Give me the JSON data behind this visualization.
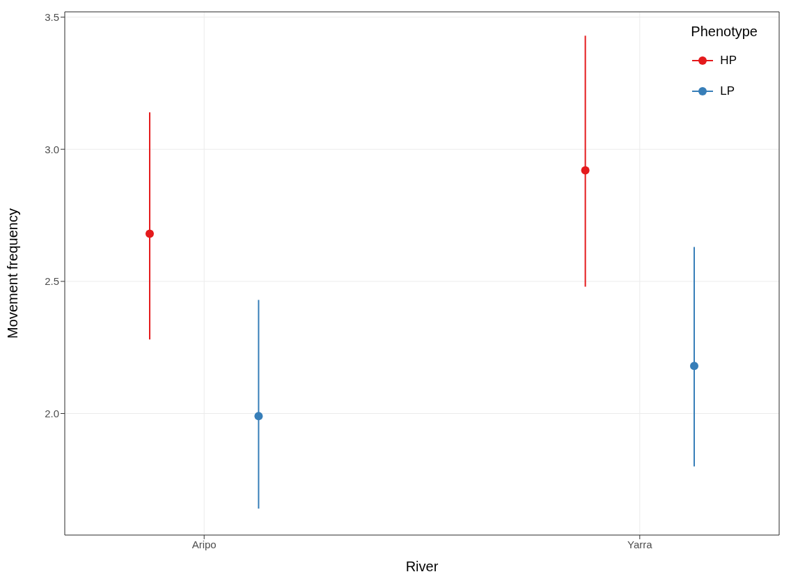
{
  "chart_data": {
    "type": "scatter",
    "xlabel": "River",
    "ylabel": "Movement frequency",
    "legend_title": "Phenotype",
    "legend": "top right",
    "grid": true,
    "marker": "circle",
    "categories": [
      "Aripo",
      "Yarra"
    ],
    "ylim": [
      1.54,
      3.52
    ],
    "yticks": [
      {
        "value": 2,
        "label": "2.0"
      },
      {
        "value": 2.5,
        "label": "2.5"
      },
      {
        "value": 3,
        "label": "3.0"
      },
      {
        "value": 3.5,
        "label": "3.5"
      }
    ],
    "series": [
      {
        "name": "HP",
        "color": "#e41a1c",
        "values": [
          2.68,
          2.92
        ],
        "errors": [
          [
            2.28,
            3.14
          ],
          [
            2.48,
            3.43
          ]
        ]
      },
      {
        "name": "LP",
        "color": "#377eb8",
        "values": [
          1.99,
          2.18
        ],
        "errors": [
          [
            1.64,
            2.43
          ],
          [
            1.8,
            2.63
          ]
        ]
      }
    ]
  }
}
